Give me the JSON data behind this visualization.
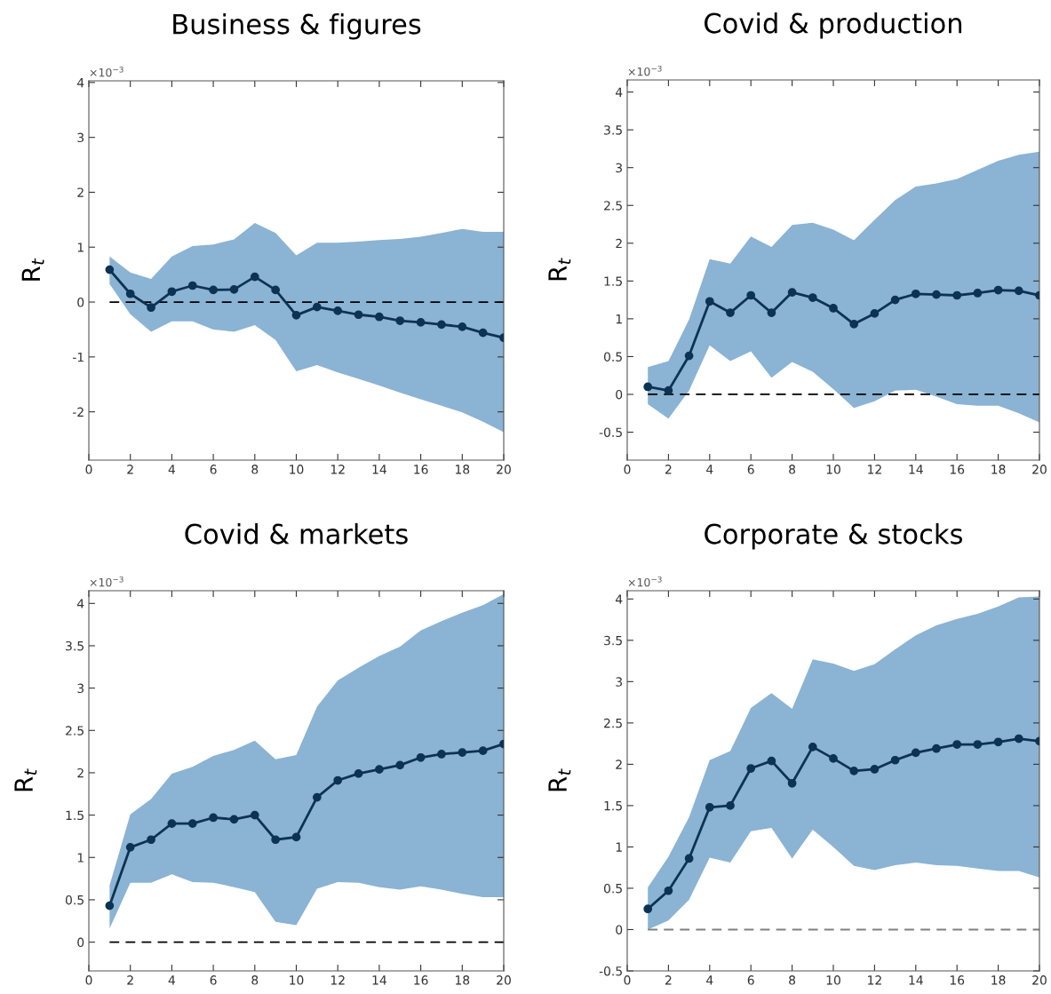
{
  "chart_data": [
    {
      "type": "line",
      "title": "Business & figures",
      "ylabel": "R$_{t}$",
      "annotations": [
        "×10$^{−3}$"
      ],
      "x": [
        1,
        2,
        3,
        4,
        5,
        6,
        7,
        8,
        9,
        10,
        11,
        12,
        13,
        14,
        15,
        16,
        17,
        18,
        19,
        20
      ],
      "xlim": [
        0,
        20
      ],
      "xticks": [
        0,
        2,
        4,
        6,
        8,
        10,
        12,
        14,
        16,
        18,
        20
      ],
      "ylim": [
        -2.88,
        4.03
      ],
      "yticks": [
        -2,
        -1,
        0,
        1,
        2,
        3,
        4
      ],
      "grid": false,
      "legend": false,
      "marker": "circle",
      "line_style": "solid",
      "series": [
        {
          "color": "#0d3352",
          "values": [
            0.59,
            0.15,
            -0.1,
            0.19,
            0.3,
            0.22,
            0.23,
            0.46,
            0.22,
            -0.24,
            -0.09,
            -0.16,
            -0.23,
            -0.27,
            -0.34,
            -0.37,
            -0.41,
            -0.45,
            -0.56,
            -0.65
          ],
          "upper": [
            0.83,
            0.54,
            0.42,
            0.83,
            1.02,
            1.05,
            1.14,
            1.44,
            1.26,
            0.85,
            1.08,
            1.08,
            1.1,
            1.13,
            1.15,
            1.19,
            1.26,
            1.33,
            1.28,
            1.28
          ],
          "lower": [
            0.33,
            -0.22,
            -0.54,
            -0.35,
            -0.35,
            -0.5,
            -0.54,
            -0.42,
            -0.69,
            -1.26,
            -1.15,
            -1.28,
            -1.4,
            -1.52,
            -1.65,
            -1.77,
            -1.89,
            -2.01,
            -2.18,
            -2.37
          ]
        }
      ],
      "ref_lines": [
        {
          "axis": "y",
          "value": 0,
          "color": "#000000",
          "line_style": "dashed"
        }
      ]
    },
    {
      "type": "line",
      "title": "Covid & production",
      "ylabel": "R$_{t}$",
      "annotations": [
        "×10$^{−3}$"
      ],
      "x": [
        1,
        2,
        3,
        4,
        5,
        6,
        7,
        8,
        9,
        10,
        11,
        12,
        13,
        14,
        15,
        16,
        17,
        18,
        19,
        20
      ],
      "xlim": [
        0,
        20
      ],
      "xticks": [
        0,
        2,
        4,
        6,
        8,
        10,
        12,
        14,
        16,
        18,
        20
      ],
      "ylim": [
        -0.87,
        4.16
      ],
      "yticks": [
        -0.5,
        0,
        0.5,
        1,
        1.5,
        2,
        2.5,
        3,
        3.5,
        4
      ],
      "grid": false,
      "legend": false,
      "marker": "circle",
      "line_style": "solid",
      "series": [
        {
          "color": "#0d3352",
          "values": [
            0.1,
            0.05,
            0.51,
            1.23,
            1.08,
            1.31,
            1.08,
            1.35,
            1.28,
            1.14,
            0.93,
            1.07,
            1.25,
            1.33,
            1.32,
            1.31,
            1.34,
            1.38,
            1.37,
            1.31
          ],
          "upper": [
            0.36,
            0.44,
            0.99,
            1.79,
            1.73,
            2.09,
            1.95,
            2.24,
            2.27,
            2.18,
            2.04,
            2.31,
            2.57,
            2.75,
            2.79,
            2.85,
            2.97,
            3.09,
            3.17,
            3.21
          ],
          "lower": [
            -0.13,
            -0.32,
            0.05,
            0.65,
            0.44,
            0.57,
            0.22,
            0.43,
            0.3,
            0.07,
            -0.18,
            -0.09,
            0.05,
            0.06,
            -0.03,
            -0.13,
            -0.15,
            -0.15,
            -0.25,
            -0.37
          ]
        }
      ],
      "ref_lines": [
        {
          "axis": "y",
          "value": 0,
          "color": "#000000",
          "line_style": "dashed"
        }
      ]
    },
    {
      "type": "line",
      "title": "Covid & markets",
      "ylabel": "R$_{t}$",
      "annotations": [
        "×10$^{−3}$"
      ],
      "x": [
        1,
        2,
        3,
        4,
        5,
        6,
        7,
        8,
        9,
        10,
        11,
        12,
        13,
        14,
        15,
        16,
        17,
        18,
        19,
        20
      ],
      "xlim": [
        0,
        20
      ],
      "xticks": [
        0,
        2,
        4,
        6,
        8,
        10,
        12,
        14,
        16,
        18,
        20
      ],
      "ylim": [
        -0.34,
        4.15
      ],
      "yticks": [
        0,
        0.5,
        1,
        1.5,
        2,
        2.5,
        3,
        3.5,
        4
      ],
      "grid": false,
      "legend": false,
      "marker": "circle",
      "line_style": "solid",
      "series": [
        {
          "color": "#0d3352",
          "values": [
            0.43,
            1.12,
            1.21,
            1.4,
            1.4,
            1.47,
            1.45,
            1.5,
            1.21,
            1.24,
            1.71,
            1.91,
            1.99,
            2.04,
            2.09,
            2.18,
            2.22,
            2.24,
            2.26,
            2.34
          ],
          "upper": [
            0.67,
            1.51,
            1.69,
            1.99,
            2.07,
            2.2,
            2.27,
            2.38,
            2.16,
            2.21,
            2.78,
            3.09,
            3.24,
            3.38,
            3.49,
            3.68,
            3.79,
            3.89,
            3.98,
            4.11
          ],
          "lower": [
            0.16,
            0.7,
            0.7,
            0.8,
            0.71,
            0.7,
            0.65,
            0.59,
            0.24,
            0.2,
            0.63,
            0.71,
            0.7,
            0.65,
            0.62,
            0.66,
            0.62,
            0.57,
            0.53,
            0.53
          ]
        }
      ],
      "ref_lines": [
        {
          "axis": "y",
          "value": 0,
          "color": "#000000",
          "line_style": "dashed"
        }
      ]
    },
    {
      "type": "line",
      "title": "Corporate & stocks",
      "ylabel": "R$_{t}$",
      "annotations": [
        "×10$^{−3}$"
      ],
      "x": [
        1,
        2,
        3,
        4,
        5,
        6,
        7,
        8,
        9,
        10,
        11,
        12,
        13,
        14,
        15,
        16,
        17,
        18,
        19,
        20
      ],
      "xlim": [
        0,
        20
      ],
      "xticks": [
        0,
        2,
        4,
        6,
        8,
        10,
        12,
        14,
        16,
        18,
        20
      ],
      "ylim": [
        -0.5,
        4.1
      ],
      "yticks": [
        -0.5,
        0,
        0.5,
        1,
        1.5,
        2,
        2.5,
        3,
        3.5,
        4
      ],
      "grid": false,
      "legend": false,
      "marker": "circle",
      "line_style": "solid",
      "series": [
        {
          "color": "#0d3352",
          "values": [
            0.25,
            0.47,
            0.86,
            1.48,
            1.5,
            1.95,
            2.04,
            1.77,
            2.21,
            2.07,
            1.92,
            1.94,
            2.05,
            2.14,
            2.19,
            2.24,
            2.24,
            2.27,
            2.31,
            2.28
          ],
          "upper": [
            0.51,
            0.88,
            1.36,
            2.05,
            2.16,
            2.68,
            2.86,
            2.67,
            3.27,
            3.22,
            3.13,
            3.21,
            3.39,
            3.56,
            3.68,
            3.76,
            3.82,
            3.91,
            4.02,
            4.03
          ],
          "lower": [
            0.0,
            0.11,
            0.36,
            0.87,
            0.81,
            1.19,
            1.23,
            0.86,
            1.21,
            1.0,
            0.77,
            0.72,
            0.78,
            0.81,
            0.78,
            0.77,
            0.74,
            0.71,
            0.71,
            0.63
          ]
        }
      ],
      "ref_lines": [
        {
          "axis": "y",
          "value": 0,
          "color": "#808080",
          "line_style": "dashed"
        }
      ]
    }
  ]
}
